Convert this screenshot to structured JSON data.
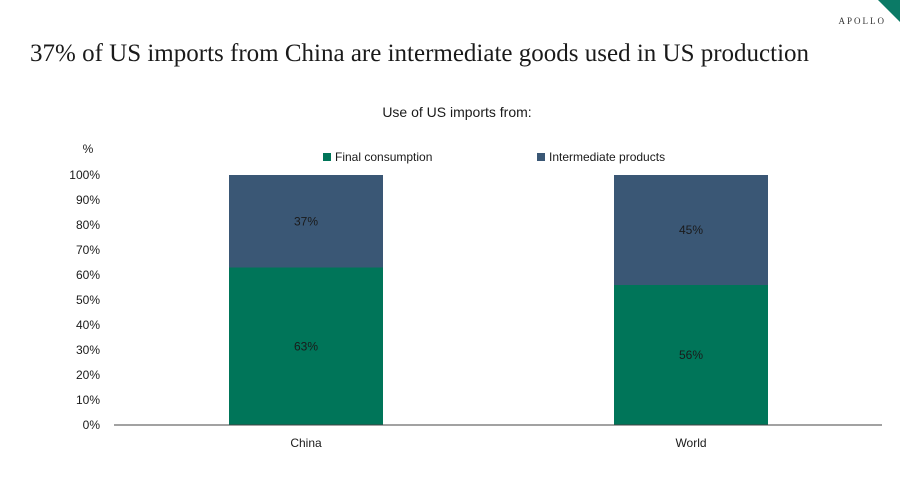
{
  "brand": "APOLLO",
  "headline": "37% of US imports from China are intermediate goods used in US production",
  "chart_data": {
    "type": "bar",
    "stacked": true,
    "title": "Use of US imports from:",
    "ylabel": "%",
    "ylim": [
      0,
      100
    ],
    "yticks": [
      "0%",
      "10%",
      "20%",
      "30%",
      "40%",
      "50%",
      "60%",
      "70%",
      "80%",
      "90%",
      "100%"
    ],
    "categories": [
      "China",
      "World"
    ],
    "series": [
      {
        "name": "Final consumption",
        "values": [
          63,
          56
        ],
        "labels": [
          "63%",
          "56%"
        ],
        "color": "#007559"
      },
      {
        "name": "Intermediate products",
        "values": [
          37,
          45
        ],
        "labels": [
          "37%",
          "45%"
        ],
        "color": "#3a5775"
      }
    ],
    "legend_position": "top",
    "grid": false
  }
}
